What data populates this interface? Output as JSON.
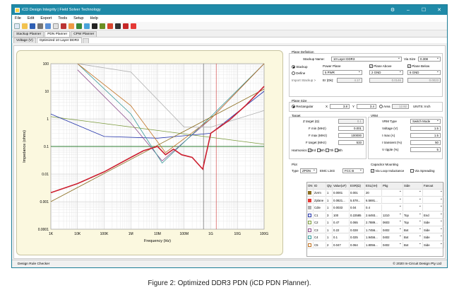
{
  "window": {
    "title": "iCD Design Integrity | Field Solver Technology",
    "menu": [
      "File",
      "Edit",
      "Export",
      "Tools",
      "Setup",
      "Help"
    ]
  },
  "tabs_top": [
    "Stackup Planner",
    "PDN Planner",
    "CPW Planner"
  ],
  "tabs_sub": [
    "Voltage (V)",
    "Optimized 10 Layer DDR3"
  ],
  "plane_definition": {
    "header": "Plane Definition",
    "stackup_name_label": "Stackup Name:",
    "stackup_name": "10 Layer DDR3",
    "via_size_label": "Via Size",
    "via_size": "0.308",
    "stackup_radio": "Stackup",
    "define_radio": "Define",
    "power_plane_label": "Power Plane",
    "power_plane": "5 PWR",
    "plane_above_label": "Plane Above",
    "plane_above": "2 GND",
    "plane_below_label": "Plane Below",
    "plane_below": "6 GND",
    "import_label": "Import Stackup  >",
    "er_label": "Er (Dk):",
    "er": "4.17",
    "above_value": "0.0146",
    "below_value": "0.0023"
  },
  "plane_size": {
    "header": "Plane Size",
    "rect_label": "Rectangular",
    "x_label": "X",
    "x": "3.8",
    "y_label": "Y",
    "y": "3.4",
    "area_label": "Area",
    "area": "12.92",
    "units": "UNITS: Inch"
  },
  "target": {
    "header": "Target",
    "ztarget_label": "Z target (Ω)",
    "ztarget": "0.1",
    "fmin_label": "F min (MHz)",
    "fmin": "0.001",
    "fmax_label": "F max (MHz)",
    "fmax": "100000",
    "ftarget_label": "F target (MHz)",
    "ftarget": "533",
    "harmonics_label": "Harmonics",
    "harmonics": [
      "3rd",
      "5th",
      "7th",
      "9th"
    ]
  },
  "vrm": {
    "header": "VRM",
    "type_label": "VRM Type",
    "type": "Switch Mode",
    "voltage_label": "Voltage (V)",
    "voltage": "1.5",
    "imax_label": "I max (A)",
    "imax": "1.5",
    "itransient_label": "I transient (%)",
    "itransient": "50",
    "vripple_label": "V ripple (%)",
    "vripple": "5"
  },
  "plot": {
    "header": "Plot",
    "type_label": "Type",
    "type": "ZPDN",
    "emc_label": "EMC Limit",
    "emc": "FCC B"
  },
  "cap_mount": {
    "header": "Capacitor Mounting",
    "via_loop": "Via Loop Inductance",
    "via_spread": "Via Spreading"
  },
  "grid": {
    "headers": [
      "ON",
      "ID",
      "Qty",
      "Value(uF)",
      "ESR(Ω)",
      "ESL(nH)",
      "Pkg",
      "Side",
      "Fanout"
    ],
    "rows": [
      {
        "id": "Zvrm",
        "qty": "1",
        "value": "0.0001",
        "esr": "0.001",
        "esl": "20",
        "pkg": "",
        "side": "",
        "fanout": "",
        "color": "#8b6d1f"
      },
      {
        "id": "Zplane",
        "qty": "1",
        "value": "0.0821...",
        "esr": "5.578...",
        "esl": "6.5691...",
        "pkg": "",
        "side": "",
        "fanout": "",
        "color": "#e53935"
      },
      {
        "id": "Cdie",
        "qty": "1",
        "value": "0.0033",
        "esr": "0.04",
        "esl": "0.4",
        "pkg": "",
        "side": "",
        "fanout": "",
        "color": "#b0b0b0"
      },
      {
        "id": "C1",
        "qty": "3",
        "value": "100",
        "esr": "0.22585",
        "esl": "2.6493...",
        "pkg": "1210",
        "side": "Top",
        "fanout": "End",
        "color": "#2233aa"
      },
      {
        "id": "C2",
        "qty": "1",
        "value": "0.47",
        "esr": "0.065",
        "esl": "2.7889...",
        "pkg": "0603",
        "side": "Top",
        "fanout": "Side",
        "color": "#7a9a3a"
      },
      {
        "id": "C3",
        "qty": "1",
        "value": "0.22",
        "esr": "0.028",
        "esl": "1.7456...",
        "pkg": "0402",
        "side": "Bot",
        "fanout": "Side",
        "color": "#8a4a8a"
      },
      {
        "id": "C4",
        "qty": "1",
        "value": "0.1",
        "esr": "0.025",
        "esl": "1.9456...",
        "pkg": "0402",
        "side": "Bot",
        "fanout": "Side",
        "color": "#3a9a9a"
      },
      {
        "id": "C5",
        "qty": "2",
        "value": "0.047",
        "esr": "0.064",
        "esl": "1.8056...",
        "pkg": "0402",
        "side": "Bot",
        "fanout": "Side",
        "color": "#c07020"
      }
    ]
  },
  "chart_data": {
    "type": "line",
    "xlabel": "Frequency (Hz)",
    "ylabel": "Impedance (ohms)",
    "xscale": "log",
    "yscale": "log",
    "xlim": [
      1000,
      100000000000
    ],
    "ylim": [
      0.0001,
      100
    ],
    "x_ticks": [
      "1K",
      "10K",
      "100K",
      "1M",
      "10M",
      "100M",
      "1G",
      "10G",
      "100G"
    ],
    "y_ticks": [
      "0.0001",
      "0.001",
      "0.01",
      "0.1",
      "1",
      "10",
      "100"
    ],
    "target_impedance": 0.1,
    "target_frequency": 533000000,
    "series": [
      {
        "color": "#cc1f2f",
        "x": [
          1000,
          10000,
          100000,
          1000000,
          3000000,
          10000000,
          20000000,
          40000000,
          80000000,
          200000000,
          500000000,
          1000000000,
          5000000000,
          20000000000,
          100000000000
        ],
        "y": [
          0.0021,
          0.0045,
          0.012,
          0.04,
          0.07,
          0.1,
          0.05,
          0.08,
          0.05,
          0.04,
          0.015,
          0.3,
          0.9,
          3,
          15
        ]
      },
      {
        "color": "#7a9a3a",
        "x": [
          1000,
          100000000000
        ],
        "y": [
          1.2,
          0.12
        ]
      },
      {
        "color": "#2233aa",
        "x": [
          1000,
          100000,
          10000000,
          1000000000,
          100000000000
        ],
        "y": [
          1.5,
          0.23,
          0.2,
          0.3,
          10
        ]
      },
      {
        "color": "#8a4a8a",
        "x": [
          10000,
          1000000,
          15000000,
          1000000000,
          100000000000
        ],
        "y": [
          60,
          0.7,
          0.03,
          1,
          100
        ]
      },
      {
        "color": "#3a9a9a",
        "x": [
          10000,
          1000000,
          15000000,
          1000000000,
          100000000000
        ],
        "y": [
          100,
          1.5,
          0.025,
          1.2,
          100
        ]
      },
      {
        "color": "#c07020",
        "x": [
          10000,
          1000000,
          20000000,
          1000000000,
          100000000000
        ],
        "y": [
          100,
          3,
          0.06,
          1,
          100
        ]
      },
      {
        "color": "#b0b0b0",
        "x": [
          10000,
          1000000,
          100000000,
          1000000000,
          100000000000
        ],
        "y": [
          100,
          50,
          0.5,
          0.5,
          2
        ]
      },
      {
        "color": "#8b6d1f",
        "x": [
          1000,
          100000000000
        ],
        "y": [
          0.001,
          12
        ]
      }
    ]
  },
  "status": {
    "left": "Design Rule Checker",
    "right": "© 2020 In-Circuit Design Pty Ltd"
  },
  "caption": "Figure 2: Optimized DDR3 PDN (iCD PDN Planner)."
}
